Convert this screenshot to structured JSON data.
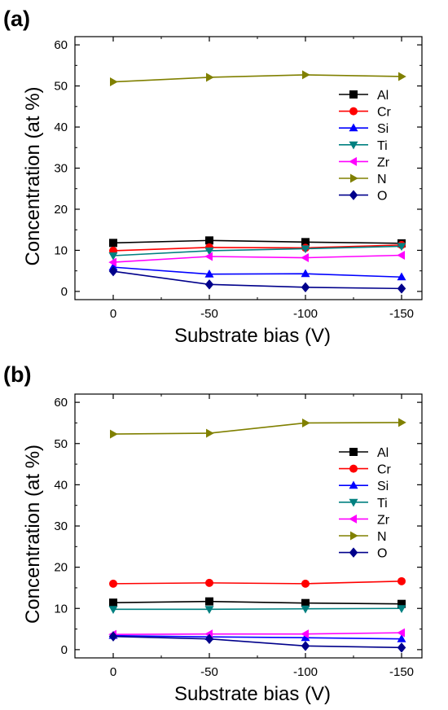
{
  "chart_data": [
    {
      "panel_label": "(a)",
      "type": "line",
      "x": [
        0,
        -50,
        -100,
        -150
      ],
      "xticklabels": [
        "0",
        "-50",
        "-100",
        "-150"
      ],
      "xlabel": "Substrate bias (V)",
      "ylabel": "Concentration (at %)",
      "ylim": [
        -2,
        62
      ],
      "yticks": [
        0,
        10,
        20,
        30,
        40,
        50,
        60
      ],
      "grid": false,
      "legend_position": "right",
      "series": [
        {
          "name": "Al",
          "color": "#000000",
          "marker": "square",
          "values": [
            11.8,
            12.4,
            12.0,
            11.7
          ]
        },
        {
          "name": "Cr",
          "color": "#ff0000",
          "marker": "circle",
          "values": [
            9.9,
            10.7,
            10.6,
            11.3
          ]
        },
        {
          "name": "Si",
          "color": "#0000ff",
          "marker": "triangle-up",
          "values": [
            5.9,
            4.2,
            4.3,
            3.5
          ]
        },
        {
          "name": "Ti",
          "color": "#008080",
          "marker": "triangle-down",
          "values": [
            8.7,
            9.9,
            10.4,
            11.0
          ]
        },
        {
          "name": "Zr",
          "color": "#ff00ff",
          "marker": "triangle-left",
          "values": [
            7.1,
            8.5,
            8.2,
            8.8
          ]
        },
        {
          "name": "N",
          "color": "#808000",
          "marker": "triangle-right",
          "values": [
            51.0,
            52.1,
            52.7,
            52.3
          ]
        },
        {
          "name": "O",
          "color": "#00008b",
          "marker": "diamond",
          "values": [
            4.9,
            1.7,
            1.0,
            0.7
          ]
        }
      ]
    },
    {
      "panel_label": "(b)",
      "type": "line",
      "x": [
        0,
        -50,
        -100,
        -150
      ],
      "xticklabels": [
        "0",
        "-50",
        "-100",
        "-150"
      ],
      "xlabel": "Substrate bias (V)",
      "ylabel": "Concentration (at %)",
      "ylim": [
        -2,
        62
      ],
      "yticks": [
        0,
        10,
        20,
        30,
        40,
        50,
        60
      ],
      "grid": false,
      "legend_position": "right",
      "series": [
        {
          "name": "Al",
          "color": "#000000",
          "marker": "square",
          "values": [
            11.4,
            11.7,
            11.3,
            11.1
          ]
        },
        {
          "name": "Cr",
          "color": "#ff0000",
          "marker": "circle",
          "values": [
            16.0,
            16.2,
            16.0,
            16.6
          ]
        },
        {
          "name": "Si",
          "color": "#0000ff",
          "marker": "triangle-up",
          "values": [
            3.4,
            3.1,
            2.9,
            2.6
          ]
        },
        {
          "name": "Ti",
          "color": "#008080",
          "marker": "triangle-down",
          "values": [
            9.8,
            9.8,
            9.9,
            10.0
          ]
        },
        {
          "name": "Zr",
          "color": "#ff00ff",
          "marker": "triangle-left",
          "values": [
            3.7,
            3.8,
            3.8,
            4.1
          ]
        },
        {
          "name": "N",
          "color": "#808000",
          "marker": "triangle-right",
          "values": [
            52.3,
            52.5,
            55.0,
            55.1
          ]
        },
        {
          "name": "O",
          "color": "#00008b",
          "marker": "diamond",
          "values": [
            3.2,
            2.6,
            0.9,
            0.5
          ]
        }
      ]
    }
  ]
}
